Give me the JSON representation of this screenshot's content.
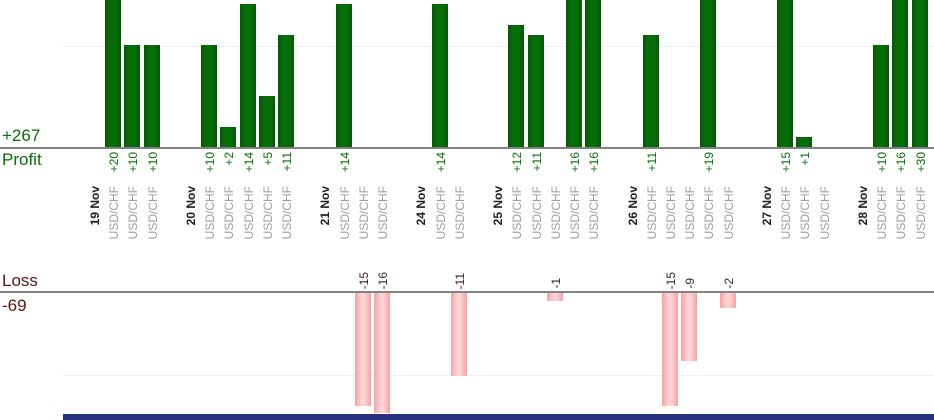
{
  "chart_data": {
    "type": "bar",
    "title": "",
    "profit_axis": {
      "total_label": "+267",
      "axis_label": "Profit",
      "gridline_value": 10
    },
    "loss_axis": {
      "total_label": "-69",
      "axis_label": "Loss",
      "gridline_value": -10
    },
    "groups": [
      {
        "date": "19 Nov",
        "trades": [
          {
            "instrument": "USD/CHF",
            "value": 20
          },
          {
            "instrument": "USD/CHF",
            "value": 10
          },
          {
            "instrument": "USD/CHF",
            "value": 10
          }
        ]
      },
      {
        "date": "20 Nov",
        "trades": [
          {
            "instrument": "USD/CHF",
            "value": 10
          },
          {
            "instrument": "USD/CHF",
            "value": 2
          },
          {
            "instrument": "USD/CHF",
            "value": 14
          },
          {
            "instrument": "USD/CHF",
            "value": 5
          },
          {
            "instrument": "USD/CHF",
            "value": 11
          }
        ]
      },
      {
        "date": "21 Nov",
        "trades": [
          {
            "instrument": "USD/CHF",
            "value": 14
          },
          {
            "instrument": "USD/CHF",
            "value": -15
          },
          {
            "instrument": "USD/CHF",
            "value": -16
          }
        ]
      },
      {
        "date": "24 Nov",
        "trades": [
          {
            "instrument": "USD/CHF",
            "value": 14
          },
          {
            "instrument": "USD/CHF",
            "value": -11
          }
        ]
      },
      {
        "date": "25 Nov",
        "trades": [
          {
            "instrument": "USD/CHF",
            "value": 12
          },
          {
            "instrument": "USD/CHF",
            "value": 11
          },
          {
            "instrument": "USD/CHF",
            "value": -1
          },
          {
            "instrument": "USD/CHF",
            "value": 16
          },
          {
            "instrument": "USD/CHF",
            "value": 16
          }
        ]
      },
      {
        "date": "26 Nov",
        "trades": [
          {
            "instrument": "USD/CHF",
            "value": 11
          },
          {
            "instrument": "USD/CHF",
            "value": -15
          },
          {
            "instrument": "USD/CHF",
            "value": -9
          },
          {
            "instrument": "USD/CHF",
            "value": 19
          },
          {
            "instrument": "USD/CHF",
            "value": -2
          }
        ]
      },
      {
        "date": "27 Nov",
        "trades": [
          {
            "instrument": "USD/CHF",
            "value": 15
          },
          {
            "instrument": "USD/CHF",
            "value": 1
          },
          {
            "instrument": "USD/CHF",
            "value": 0
          }
        ]
      },
      {
        "date": "28 Nov",
        "trades": [
          {
            "instrument": "USD/CHF",
            "value": 10
          },
          {
            "instrument": "USD/CHF",
            "value": 16
          },
          {
            "instrument": "USD/CHF",
            "value": 30
          }
        ]
      }
    ],
    "layout_hints": {
      "grid": "on",
      "bars_clipped_at_top": true,
      "value_labels_rotated_90ccw": true
    },
    "colors": {
      "profit_bar": "#066a08",
      "profit_text": "#057005",
      "loss_bar": "#fbc6c6",
      "loss_text": "#3d1f1f",
      "loss_heading": "#561616",
      "date_text": "#1f1f1f",
      "instrument_text": "#9e9e9e",
      "bottom_panel": "#25317d"
    }
  }
}
